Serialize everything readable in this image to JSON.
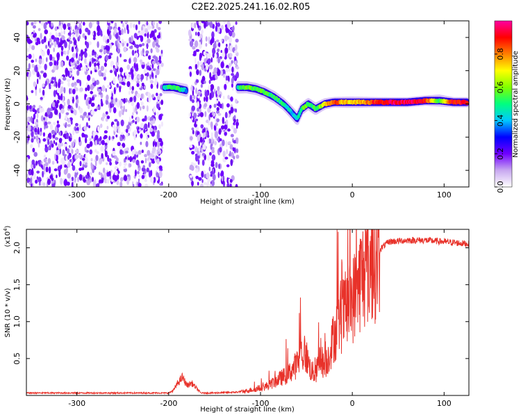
{
  "title": "C2E2.2025.241.16.02.R05",
  "chart_data": [
    {
      "type": "heatmap",
      "name": "spectrogram",
      "xlabel": "Height of straight line (km)",
      "ylabel": "Frequency (Hz)",
      "xlim": [
        -355,
        127
      ],
      "ylim": [
        -50,
        50
      ],
      "xticks": [
        -300,
        -200,
        -100,
        0,
        100
      ],
      "yticks": [
        -40,
        -20,
        0,
        20,
        40
      ],
      "colorbar": {
        "label": "Normalized spectral amplitude",
        "range": [
          0,
          1
        ],
        "ticks": [
          0.0,
          0.2,
          0.4,
          0.6,
          0.8
        ],
        "colors": [
          "#ffffff",
          "#c8a8f0",
          "#7000ff",
          "#0000ff",
          "#00c8ff",
          "#00ff80",
          "#80ff00",
          "#ffff00",
          "#ff8000",
          "#ff0000",
          "#ff00a0"
        ]
      },
      "noise_regions": [
        [
          -355,
          -207
        ],
        [
          -177,
          -125
        ]
      ],
      "signal_track": [
        {
          "x": -205,
          "y": 10,
          "a": 0.45
        },
        {
          "x": -195,
          "y": 10,
          "a": 0.55
        },
        {
          "x": -188,
          "y": 9,
          "a": 0.5
        },
        {
          "x": -180,
          "y": 8,
          "a": 0.4
        },
        {
          "x": -125,
          "y": 10,
          "a": 0.5
        },
        {
          "x": -115,
          "y": 10,
          "a": 0.55
        },
        {
          "x": -105,
          "y": 9,
          "a": 0.55
        },
        {
          "x": -95,
          "y": 7,
          "a": 0.55
        },
        {
          "x": -85,
          "y": 4,
          "a": 0.5
        },
        {
          "x": -75,
          "y": 0,
          "a": 0.5
        },
        {
          "x": -68,
          "y": -4,
          "a": 0.45
        },
        {
          "x": -60,
          "y": -9,
          "a": 0.4
        },
        {
          "x": -55,
          "y": -3,
          "a": 0.55
        },
        {
          "x": -48,
          "y": 0,
          "a": 0.55
        },
        {
          "x": -40,
          "y": -3,
          "a": 0.5
        },
        {
          "x": -30,
          "y": 0,
          "a": 0.7
        },
        {
          "x": -20,
          "y": 1,
          "a": 0.85
        },
        {
          "x": -10,
          "y": 1,
          "a": 0.75
        },
        {
          "x": 0,
          "y": 1,
          "a": 0.7
        },
        {
          "x": 10,
          "y": 1,
          "a": 0.75
        },
        {
          "x": 20,
          "y": 1,
          "a": 0.85
        },
        {
          "x": 40,
          "y": 1,
          "a": 0.95
        },
        {
          "x": 60,
          "y": 1,
          "a": 0.95
        },
        {
          "x": 80,
          "y": 2,
          "a": 0.9
        },
        {
          "x": 95,
          "y": 2,
          "a": 0.55
        },
        {
          "x": 110,
          "y": 1,
          "a": 0.9
        },
        {
          "x": 125,
          "y": 1,
          "a": 0.9
        }
      ]
    },
    {
      "type": "line",
      "name": "snr",
      "xlabel": "Height of straight line (km)",
      "ylabel": "SNR (10 * v/v)",
      "y_multiplier": "(x10",
      "y_multiplier_exp": "4",
      "y_multiplier_close": ")",
      "xlim": [
        -355,
        127
      ],
      "ylim": [
        0,
        22500
      ],
      "xticks": [
        -300,
        -200,
        -100,
        0,
        100
      ],
      "yticks": [
        5000,
        10000,
        15000,
        20000
      ],
      "ytick_labels": [
        "0.5",
        "1.0",
        "1.5",
        "2.0"
      ],
      "color": "#e8322a",
      "envelope": {
        "x": [
          -355,
          -200,
          -195,
          -190,
          -185,
          -180,
          -175,
          -165,
          -150,
          -125,
          -110,
          -100,
          -90,
          -80,
          -70,
          -60,
          -55,
          -50,
          -45,
          -40,
          -35,
          -30,
          -25,
          -20,
          -15,
          -10,
          -5,
          0,
          5,
          10,
          20,
          30,
          40,
          60,
          80,
          100,
          127
        ],
        "y": [
          300,
          300,
          600,
          1500,
          2200,
          1200,
          1500,
          300,
          300,
          400,
          800,
          1000,
          1500,
          2300,
          3000,
          4500,
          6000,
          5500,
          3500,
          3000,
          5500,
          4000,
          6000,
          8500,
          10000,
          11500,
          12500,
          13500,
          15000,
          17000,
          18500,
          20000,
          21000,
          21200,
          21200,
          21000,
          20700
        ]
      }
    }
  ]
}
